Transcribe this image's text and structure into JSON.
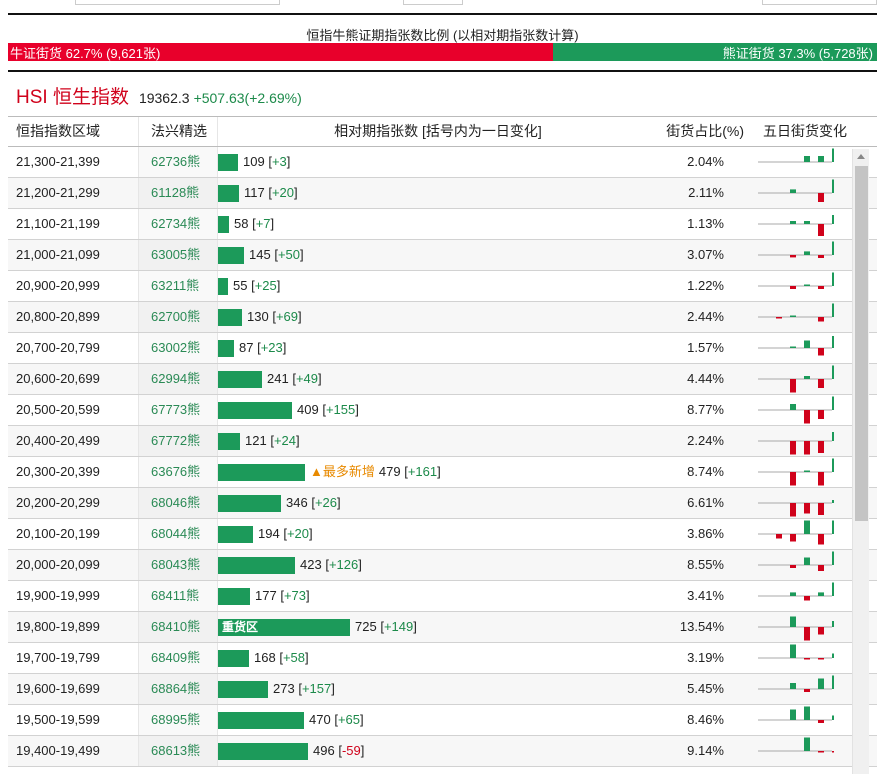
{
  "ratio": {
    "title": "恒指牛熊证期指张数比例 (以相对期指张数计算)",
    "bull_label": "牛证街货 62.7% (9,621张)",
    "bear_label": "熊证街货 37.3% (5,728张)",
    "bull_fraction": 0.627,
    "colors": {
      "bull": "#e8002b",
      "bear": "#1c9a5a"
    }
  },
  "hsi": {
    "name": "HSI 恒生指数",
    "price": "19362.3",
    "change": "+507.63(+2.69%)"
  },
  "table": {
    "headers": {
      "range": "恒指指数区域",
      "code": "法兴精选",
      "contracts": "相对期指张数 [括号内为一日变化]",
      "share": "街货占比(%)",
      "trend": "五日街货变化"
    },
    "max_contracts": 725,
    "rows": [
      {
        "range": "21,300-21,399",
        "code": "62736熊",
        "contracts": 109,
        "contracts_text": "109",
        "change": "+3",
        "share": "2.04%",
        "tag": "",
        "five_day": [
          0,
          0,
          0.2,
          0.2,
          0.45
        ]
      },
      {
        "range": "21,200-21,299",
        "code": "61128熊",
        "contracts": 117,
        "contracts_text": "117",
        "change": "+20",
        "share": "2.11%",
        "tag": "",
        "five_day": [
          0,
          0.12,
          0,
          -0.3,
          0.45
        ]
      },
      {
        "range": "21,100-21,199",
        "code": "62734熊",
        "contracts": 58,
        "contracts_text": "58",
        "change": "+7",
        "share": "1.13%",
        "tag": "",
        "five_day": [
          0,
          0.1,
          0.1,
          -0.4,
          0.3
        ]
      },
      {
        "range": "21,000-21,099",
        "code": "63005熊",
        "contracts": 145,
        "contracts_text": "145",
        "change": "+50",
        "share": "3.07%",
        "tag": "",
        "five_day": [
          0,
          -0.08,
          0.12,
          -0.1,
          0.45
        ]
      },
      {
        "range": "20,900-20,999",
        "code": "63211熊",
        "contracts": 55,
        "contracts_text": "55",
        "change": "+25",
        "share": "1.22%",
        "tag": "",
        "five_day": [
          0,
          -0.1,
          0.05,
          -0.1,
          0.45
        ]
      },
      {
        "range": "20,800-20,899",
        "code": "62700熊",
        "contracts": 130,
        "contracts_text": "130",
        "change": "+69",
        "share": "2.44%",
        "tag": "",
        "five_day": [
          -0.05,
          0.05,
          0,
          -0.15,
          0.45
        ]
      },
      {
        "range": "20,700-20,799",
        "code": "63002熊",
        "contracts": 87,
        "contracts_text": "87",
        "change": "+23",
        "share": "1.57%",
        "tag": "",
        "five_day": [
          0,
          0.05,
          0.25,
          -0.25,
          0.4
        ]
      },
      {
        "range": "20,600-20,699",
        "code": "62994熊",
        "contracts": 241,
        "contracts_text": "241",
        "change": "+49",
        "share": "4.44%",
        "tag": "",
        "five_day": [
          0,
          -0.45,
          0.1,
          -0.3,
          0.45
        ]
      },
      {
        "range": "20,500-20,599",
        "code": "67773熊",
        "contracts": 409,
        "contracts_text": "409",
        "change": "+155",
        "share": "8.77%",
        "tag": "",
        "five_day": [
          0,
          0.2,
          -0.45,
          -0.3,
          0.45
        ]
      },
      {
        "range": "20,400-20,499",
        "code": "67772熊",
        "contracts": 121,
        "contracts_text": "121",
        "change": "+24",
        "share": "2.24%",
        "tag": "",
        "five_day": [
          0,
          -0.45,
          -0.45,
          -0.4,
          0.3
        ]
      },
      {
        "range": "20,300-20,399",
        "code": "63676熊",
        "contracts": 479,
        "contracts_text": "479",
        "change": "+161",
        "share": "8.74%",
        "tag": "▲最多新增",
        "five_day": [
          0,
          -0.45,
          0.05,
          -0.45,
          0.45
        ]
      },
      {
        "range": "20,200-20,299",
        "code": "68046熊",
        "contracts": 346,
        "contracts_text": "346",
        "change": "+26",
        "share": "6.61%",
        "tag": "",
        "five_day": [
          0,
          -0.45,
          -0.35,
          -0.4,
          0.1
        ]
      },
      {
        "range": "20,100-20,199",
        "code": "68044熊",
        "contracts": 194,
        "contracts_text": "194",
        "change": "+20",
        "share": "3.86%",
        "tag": "",
        "five_day": [
          -0.15,
          -0.25,
          0.45,
          -0.35,
          0.45
        ]
      },
      {
        "range": "20,000-20,099",
        "code": "68043熊",
        "contracts": 423,
        "contracts_text": "423",
        "change": "+126",
        "share": "8.55%",
        "tag": "",
        "five_day": [
          0,
          -0.1,
          0.25,
          -0.2,
          0.45
        ]
      },
      {
        "range": "19,900-19,999",
        "code": "68411熊",
        "contracts": 177,
        "contracts_text": "177",
        "change": "+73",
        "share": "3.41%",
        "tag": "",
        "five_day": [
          0,
          0.12,
          -0.15,
          0.12,
          0.45
        ]
      },
      {
        "range": "19,800-19,899",
        "code": "68410熊",
        "contracts": 725,
        "contracts_text": "725",
        "change": "+149",
        "share": "13.54%",
        "tag": "重货区",
        "five_day": [
          0,
          0.35,
          -0.45,
          -0.25,
          0.2
        ]
      },
      {
        "range": "19,700-19,799",
        "code": "68409熊",
        "contracts": 168,
        "contracts_text": "168",
        "change": "+58",
        "share": "3.19%",
        "tag": "",
        "five_day": [
          0,
          0.45,
          -0.05,
          -0.05,
          0.15
        ]
      },
      {
        "range": "19,600-19,699",
        "code": "68864熊",
        "contracts": 273,
        "contracts_text": "273",
        "change": "+157",
        "share": "5.45%",
        "tag": "",
        "five_day": [
          0,
          0.2,
          -0.1,
          0.35,
          0.45
        ]
      },
      {
        "range": "19,500-19,599",
        "code": "68995熊",
        "contracts": 470,
        "contracts_text": "470",
        "change": "+65",
        "share": "8.46%",
        "tag": "",
        "five_day": [
          0,
          0.35,
          0.45,
          -0.1,
          0.15
        ]
      },
      {
        "range": "19,400-19,499",
        "code": "68613熊",
        "contracts": 496,
        "contracts_text": "496",
        "change": "-59",
        "share": "9.14%",
        "tag": "",
        "five_day": [
          0,
          0,
          0.45,
          -0.05,
          -0.05
        ]
      }
    ]
  },
  "colors": {
    "green": "#1c9a5a",
    "red": "#d0021b",
    "tag_orange": "#e88a00"
  }
}
